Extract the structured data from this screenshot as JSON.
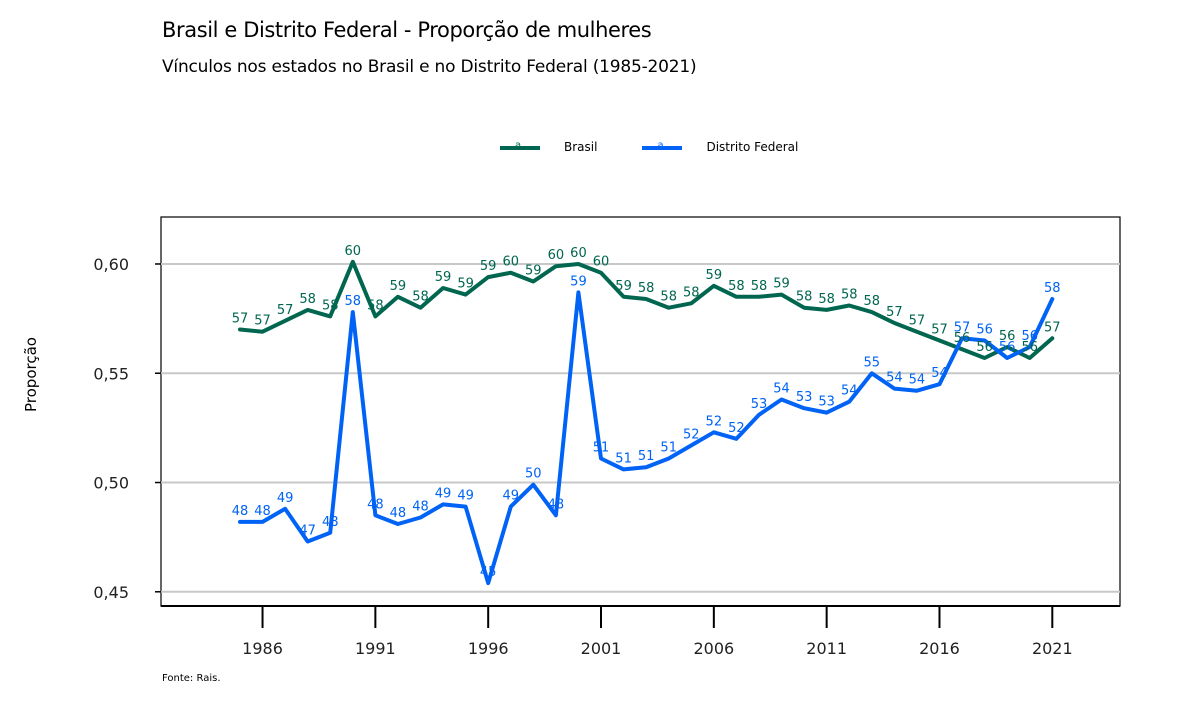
{
  "chart_data": {
    "type": "line",
    "title": "Brasil e Distrito Federal - Proporção de mulheres",
    "subtitle": "Vínculos nos estados no Brasil e no Distrito Federal (1985-2021)",
    "xlabel": "",
    "ylabel": "Proporção",
    "source": "Fonte: Rais.",
    "x": [
      1985,
      1986,
      1987,
      1988,
      1989,
      1990,
      1991,
      1992,
      1993,
      1994,
      1995,
      1996,
      1997,
      1998,
      1999,
      2000,
      2001,
      2002,
      2003,
      2004,
      2005,
      2006,
      2007,
      2008,
      2009,
      2010,
      2011,
      2012,
      2013,
      2014,
      2015,
      2016,
      2017,
      2018,
      2019,
      2020,
      2021
    ],
    "xticks": [
      "1986",
      "1991",
      "1996",
      "2001",
      "2006",
      "2011",
      "2016",
      "2021"
    ],
    "xtick_values": [
      1986,
      1991,
      1996,
      2001,
      2006,
      2011,
      2016,
      2021
    ],
    "yticks": [
      "0,45",
      "0,50",
      "0,55",
      "0,60"
    ],
    "ytick_values": [
      0.45,
      0.5,
      0.55,
      0.6
    ],
    "xlim": [
      1981.5,
      2024
    ],
    "ylim": [
      0.4435,
      0.6215
    ],
    "grid": "horizontal",
    "legend_position": "top-center",
    "series": [
      {
        "name": "Brasil",
        "color": "#00664f",
        "values": [
          0.57,
          0.569,
          0.574,
          0.579,
          0.576,
          0.601,
          0.576,
          0.585,
          0.58,
          0.589,
          0.586,
          0.594,
          0.596,
          0.592,
          0.599,
          0.6,
          0.596,
          0.585,
          0.584,
          0.58,
          0.582,
          0.59,
          0.585,
          0.585,
          0.586,
          0.58,
          0.579,
          0.581,
          0.578,
          0.573,
          0.569,
          0.565,
          0.561,
          0.557,
          0.562,
          0.557,
          0.566
        ],
        "labels": [
          "57",
          "57",
          "57",
          "58",
          "58",
          "60",
          "58",
          "59",
          "58",
          "59",
          "59",
          "59",
          "60",
          "59",
          "60",
          "60",
          "60",
          "59",
          "58",
          "58",
          "58",
          "59",
          "58",
          "58",
          "59",
          "58",
          "58",
          "58",
          "58",
          "57",
          "57",
          "57",
          "56",
          "56",
          "56",
          "56",
          "57"
        ]
      },
      {
        "name": "Distrito Federal",
        "color": "#0063f5",
        "values": [
          0.482,
          0.482,
          0.488,
          0.473,
          0.477,
          0.578,
          0.485,
          0.481,
          0.484,
          0.49,
          0.489,
          0.454,
          0.489,
          0.499,
          0.485,
          0.587,
          0.511,
          0.506,
          0.507,
          0.511,
          0.517,
          0.523,
          0.52,
          0.531,
          0.538,
          0.534,
          0.532,
          0.537,
          0.55,
          0.543,
          0.542,
          0.545,
          0.566,
          0.565,
          0.557,
          0.562,
          0.584
        ],
        "labels": [
          "48",
          "48",
          "49",
          "47",
          "48",
          "58",
          "48",
          "48",
          "48",
          "49",
          "49",
          "45",
          "49",
          "50",
          "48",
          "59",
          "51",
          "51",
          "51",
          "51",
          "52",
          "52",
          "52",
          "53",
          "54",
          "53",
          "53",
          "54",
          "55",
          "54",
          "54",
          "54",
          "57",
          "56",
          "56",
          "56",
          "58"
        ]
      }
    ]
  }
}
